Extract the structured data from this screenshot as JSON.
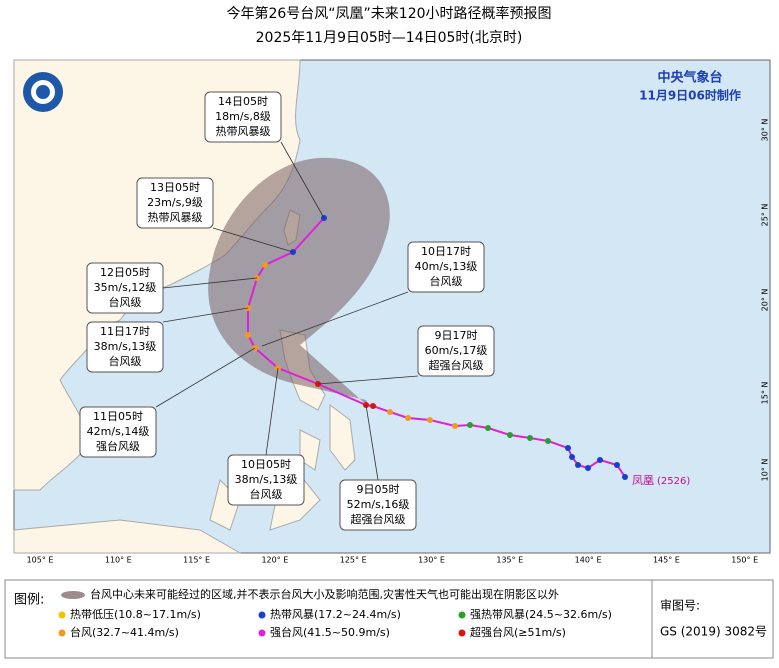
{
  "header": {
    "title": "今年第26号台风“凤凰”未来120小时路径概率预报图",
    "subtitle": "2025年11月9日05时—14日05时(北京时)"
  },
  "agency": {
    "name": "中央气象台",
    "issued": "11月9日06时制作"
  },
  "map": {
    "lon_labels": [
      "105° E",
      "110° E",
      "115° E",
      "120° E",
      "125° E",
      "130° E",
      "135° E",
      "140° E",
      "145° E",
      "150° E"
    ],
    "lat_labels": [
      "30° N",
      "25° N",
      "20° N",
      "15° N",
      "10° N"
    ],
    "storm_name": "凤凰",
    "storm_code": "(2526)",
    "annotations": [
      {
        "lines": [
          "14日05时",
          "18m/s,8级",
          "热带风暴级"
        ]
      },
      {
        "lines": [
          "13日05时",
          "23m/s,9级",
          "热带风暴级"
        ]
      },
      {
        "lines": [
          "12日05时",
          "35m/s,12级",
          "台风级"
        ]
      },
      {
        "lines": [
          "11日17时",
          "38m/s,13级",
          "台风级"
        ]
      },
      {
        "lines": [
          "11日05时",
          "42m/s,14级",
          "强台风级"
        ]
      },
      {
        "lines": [
          "10日05时",
          "38m/s,13级",
          "台风级"
        ]
      },
      {
        "lines": [
          "10日17时",
          "40m/s,13级",
          "台风级"
        ]
      },
      {
        "lines": [
          "9日17时",
          "60m/s,17级",
          "超强台风级"
        ]
      },
      {
        "lines": [
          "9日05时",
          "52m/s,16级",
          "超强台风级"
        ]
      }
    ]
  },
  "legend": {
    "title": "图例:",
    "cone": "台风中心未来可能经过的区域,并不表示台风大小及影响范围,灾害性天气也可能出现在阴影区以外",
    "items": [
      {
        "label": "热带低压(10.8~17.1m/s)",
        "color": "#f2c200"
      },
      {
        "label": "热带风暴(17.2~24.4m/s)",
        "color": "#1a3fd0"
      },
      {
        "label": "强热带风暴(24.5~32.6m/s)",
        "color": "#2aa02a"
      },
      {
        "label": "台风(32.7~41.4m/s)",
        "color": "#f39a1e"
      },
      {
        "label": "强台风(41.5~50.9m/s)",
        "color": "#e020d8"
      },
      {
        "label": "超强台风(≥51m/s)",
        "color": "#e01010"
      }
    ]
  },
  "review": {
    "label": "审图号:",
    "number": "GS (2019) 3082号"
  }
}
